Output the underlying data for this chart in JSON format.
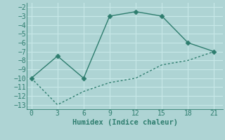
{
  "xlabel": "Humidex (Indice chaleur)",
  "line1_x": [
    0,
    3,
    6,
    9,
    12,
    15,
    18,
    21
  ],
  "line1_y": [
    -10,
    -7.5,
    -10,
    -3,
    -2.5,
    -3,
    -6,
    -7
  ],
  "line2_x": [
    0,
    3,
    6,
    9,
    12,
    15,
    18,
    21
  ],
  "line2_y": [
    -10,
    -13,
    -11.5,
    -10.5,
    -10,
    -8.5,
    -8,
    -7
  ],
  "line_color": "#2e7d6e",
  "bg_color": "#aed4d4",
  "grid_color": "#c8e8e8",
  "xlim": [
    -0.5,
    22
  ],
  "ylim": [
    -13.5,
    -1.5
  ],
  "xticks": [
    0,
    3,
    6,
    9,
    12,
    15,
    18,
    21
  ],
  "yticks": [
    -13,
    -12,
    -11,
    -10,
    -9,
    -8,
    -7,
    -6,
    -5,
    -4,
    -3,
    -2
  ],
  "marker_size": 3.5,
  "line_width": 1.0,
  "xlabel_fontsize": 7.5,
  "tick_fontsize": 7
}
